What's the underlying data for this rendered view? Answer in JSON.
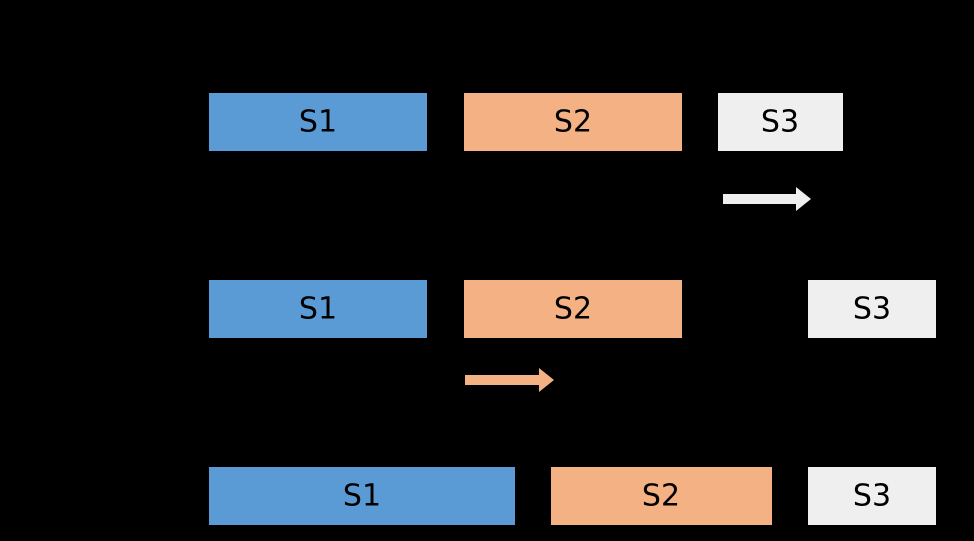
{
  "rows": [
    {
      "boxes": [
        "S1",
        "S2",
        "S3"
      ]
    },
    {
      "boxes": [
        "S1",
        "S2",
        "S3"
      ]
    },
    {
      "boxes": [
        "S1",
        "S2",
        "S3"
      ]
    }
  ]
}
